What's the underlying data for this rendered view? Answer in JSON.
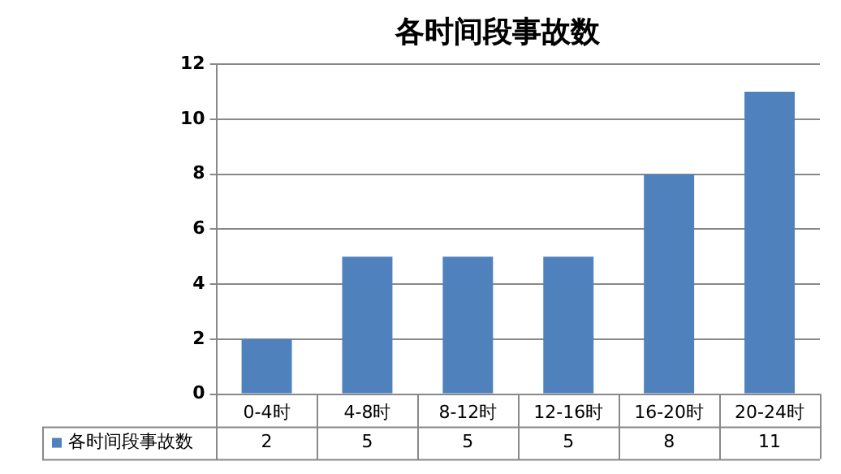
{
  "chart_data": {
    "type": "bar",
    "title": "各时间段事故数",
    "categories": [
      "0-4时",
      "4-8时",
      "8-12时",
      "12-16时",
      "16-20时",
      "20-24时"
    ],
    "series": [
      {
        "name": "各时间段事故数",
        "color": "#4f81bd",
        "values": [
          2,
          5,
          5,
          5,
          8,
          11
        ]
      }
    ],
    "ylim": [
      0,
      12
    ],
    "yticks": [
      0,
      2,
      4,
      6,
      8,
      10,
      12
    ],
    "grid": "y",
    "legend": "bottom",
    "data_labels": true
  }
}
